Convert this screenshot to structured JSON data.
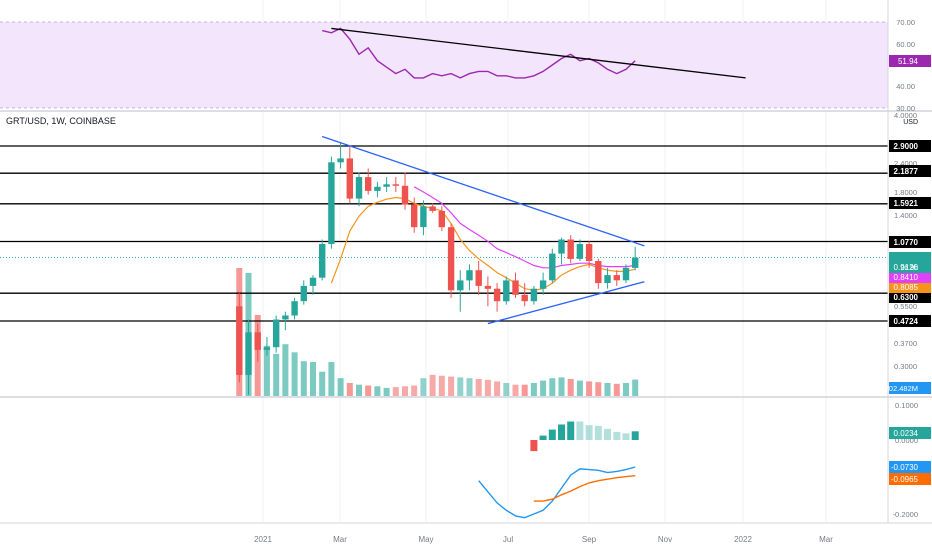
{
  "symbol_label": "GRT/USD, 1W, COINBASE",
  "price_axis": {
    "unit": "USD",
    "ticks": [
      "4.0000",
      "2.4000",
      "1.8000",
      "1.4000",
      "0.5500",
      "0.3700",
      "0.3000"
    ]
  },
  "rsi_axis": {
    "ticks": [
      "70.00",
      "60.00",
      "40.00",
      "30.00"
    ]
  },
  "macd_axis": {
    "ticks": [
      "0.1000",
      "0.0000",
      "-0.2000"
    ]
  },
  "time_axis": {
    "ticks": [
      "2021",
      "Mar",
      "May",
      "Jul",
      "Sep",
      "Nov",
      "2022",
      "Mar"
    ]
  },
  "level_badges": [
    "2.9000",
    "2.1877",
    "1.5921",
    "1.0770",
    "0.6300",
    "0.4724"
  ],
  "value_badges": {
    "price": "0.9120",
    "countdown": "2d 9h",
    "ma_fast": "0.8410",
    "ma_slow": "0.8085",
    "volume": "202.482M",
    "rsi": "51.94",
    "histogram": "0.0234",
    "macd": "-0.0730",
    "signal": "-0.0965"
  },
  "colors": {
    "up": "#26a69a",
    "down": "#ef5350",
    "trendline": "#2962ff",
    "ema_fast": "#e040fb",
    "ema_slow": "#f7931a",
    "rsi_line": "#9c27b0",
    "rsi_band": "#f3e5fb",
    "macd_line": "#2196f3",
    "signal_line": "#ff6d00",
    "level_line": "#000000"
  },
  "chart_data": [
    {
      "type": "candlestick",
      "title": "GRT/USD, 1W, COINBASE",
      "y_scale": "log",
      "ylabel": "USD",
      "x": [
        "2020-12-14",
        "2020-12-21",
        "2020-12-28",
        "2021-01-04",
        "2021-01-11",
        "2021-01-18",
        "2021-01-25",
        "2021-02-01",
        "2021-02-08",
        "2021-02-15",
        "2021-02-22",
        "2021-03-01",
        "2021-03-08",
        "2021-03-15",
        "2021-03-22",
        "2021-03-29",
        "2021-04-05",
        "2021-04-12",
        "2021-04-19",
        "2021-04-26",
        "2021-05-03",
        "2021-05-10",
        "2021-05-17",
        "2021-05-24",
        "2021-05-31",
        "2021-06-07",
        "2021-06-14",
        "2021-06-21",
        "2021-06-28",
        "2021-07-05",
        "2021-07-12",
        "2021-07-19",
        "2021-07-26",
        "2021-08-02",
        "2021-08-09",
        "2021-08-16",
        "2021-08-23",
        "2021-08-30",
        "2021-09-06",
        "2021-09-13",
        "2021-09-20",
        "2021-09-27",
        "2021-10-04",
        "2021-10-11"
      ],
      "ohlc": [
        [
          0.55,
          0.63,
          0.25,
          0.27
        ],
        [
          0.27,
          0.48,
          0.22,
          0.42
        ],
        [
          0.42,
          0.46,
          0.31,
          0.35
        ],
        [
          0.35,
          0.4,
          0.33,
          0.36
        ],
        [
          0.36,
          0.5,
          0.34,
          0.48
        ],
        [
          0.48,
          0.52,
          0.43,
          0.5
        ],
        [
          0.5,
          0.6,
          0.48,
          0.58
        ],
        [
          0.58,
          0.72,
          0.56,
          0.68
        ],
        [
          0.68,
          0.76,
          0.62,
          0.74
        ],
        [
          0.74,
          1.1,
          0.72,
          1.05
        ],
        [
          1.05,
          2.6,
          1.0,
          2.45
        ],
        [
          2.45,
          3.0,
          2.3,
          2.55
        ],
        [
          2.55,
          2.9,
          1.6,
          1.68
        ],
        [
          1.68,
          2.2,
          1.55,
          2.1
        ],
        [
          2.1,
          2.3,
          1.75,
          1.82
        ],
        [
          1.82,
          2.0,
          1.7,
          1.9
        ],
        [
          1.9,
          2.1,
          1.8,
          1.95
        ],
        [
          1.95,
          2.1,
          1.8,
          1.92
        ],
        [
          1.92,
          2.2,
          1.5,
          1.58
        ],
        [
          1.58,
          1.7,
          1.18,
          1.25
        ],
        [
          1.25,
          1.65,
          1.15,
          1.55
        ],
        [
          1.55,
          1.6,
          1.45,
          1.48
        ],
        [
          1.48,
          1.55,
          1.2,
          1.25
        ],
        [
          1.25,
          1.3,
          0.6,
          0.65
        ],
        [
          0.65,
          0.8,
          0.52,
          0.72
        ],
        [
          0.72,
          0.85,
          0.65,
          0.8
        ],
        [
          0.8,
          0.88,
          0.62,
          0.68
        ],
        [
          0.68,
          0.75,
          0.55,
          0.66
        ],
        [
          0.66,
          0.7,
          0.52,
          0.58
        ],
        [
          0.58,
          0.75,
          0.56,
          0.72
        ],
        [
          0.72,
          0.78,
          0.6,
          0.62
        ],
        [
          0.62,
          0.7,
          0.55,
          0.58
        ],
        [
          0.58,
          0.68,
          0.56,
          0.66
        ],
        [
          0.66,
          0.78,
          0.62,
          0.72
        ],
        [
          0.72,
          1.0,
          0.7,
          0.95
        ],
        [
          0.95,
          1.12,
          0.85,
          1.1
        ],
        [
          1.1,
          1.15,
          0.86,
          0.9
        ],
        [
          0.9,
          1.1,
          0.88,
          1.05
        ],
        [
          1.05,
          1.08,
          0.82,
          0.88
        ],
        [
          0.88,
          0.9,
          0.66,
          0.7
        ],
        [
          0.7,
          0.82,
          0.66,
          0.76
        ],
        [
          0.76,
          0.8,
          0.68,
          0.72
        ],
        [
          0.72,
          0.85,
          0.7,
          0.82
        ],
        [
          0.82,
          1.02,
          0.8,
          0.912
        ]
      ],
      "ema_fast": [
        null,
        null,
        null,
        null,
        null,
        null,
        null,
        null,
        null,
        null,
        null,
        null,
        null,
        null,
        null,
        null,
        null,
        null,
        null,
        1.9,
        1.8,
        1.7,
        1.6,
        1.45,
        1.3,
        1.22,
        1.15,
        1.08,
        1.0,
        0.96,
        0.92,
        0.88,
        0.84,
        0.82,
        0.82,
        0.84,
        0.85,
        0.86,
        0.86,
        0.84,
        0.83,
        0.83,
        0.83,
        0.841
      ],
      "ema_slow": [
        null,
        null,
        null,
        null,
        null,
        null,
        null,
        null,
        null,
        null,
        0.7,
        0.9,
        1.2,
        1.4,
        1.55,
        1.62,
        1.67,
        1.7,
        1.68,
        1.6,
        1.55,
        1.52,
        1.48,
        1.3,
        1.1,
        0.98,
        0.9,
        0.84,
        0.78,
        0.74,
        0.7,
        0.66,
        0.65,
        0.66,
        0.7,
        0.76,
        0.8,
        0.83,
        0.85,
        0.82,
        0.8,
        0.79,
        0.79,
        0.8085
      ],
      "volume_M": [
        1580,
        1520,
        1000,
        620,
        520,
        640,
        540,
        430,
        420,
        300,
        420,
        220,
        160,
        140,
        130,
        120,
        100,
        110,
        120,
        130,
        220,
        260,
        250,
        240,
        230,
        220,
        210,
        200,
        180,
        160,
        140,
        140,
        160,
        190,
        220,
        230,
        210,
        190,
        180,
        170,
        160,
        150,
        160,
        202.482
      ],
      "trendlines": [
        {
          "from": [
            "2021-02-15",
            3.2
          ],
          "to": [
            "2021-10-18",
            1.03
          ]
        },
        {
          "from": [
            "2021-06-21",
            0.46
          ],
          "to": [
            "2021-10-18",
            0.71
          ]
        }
      ],
      "horizontal_levels": [
        2.9,
        2.1877,
        1.5921,
        1.077,
        0.63,
        0.4724
      ],
      "last_price": 0.912
    },
    {
      "type": "line",
      "title": "RSI",
      "ylim": [
        30,
        70
      ],
      "band": [
        30,
        70
      ],
      "x": [
        "2021-02-15",
        "2021-02-22",
        "2021-03-01",
        "2021-03-08",
        "2021-03-15",
        "2021-03-22",
        "2021-03-29",
        "2021-04-05",
        "2021-04-12",
        "2021-04-19",
        "2021-04-26",
        "2021-05-03",
        "2021-05-10",
        "2021-05-17",
        "2021-05-24",
        "2021-05-31",
        "2021-06-07",
        "2021-06-14",
        "2021-06-21",
        "2021-06-28",
        "2021-07-05",
        "2021-07-12",
        "2021-07-19",
        "2021-07-26",
        "2021-08-02",
        "2021-08-09",
        "2021-08-16",
        "2021-08-23",
        "2021-08-30",
        "2021-09-06",
        "2021-09-13",
        "2021-09-20",
        "2021-09-27",
        "2021-10-04",
        "2021-10-11"
      ],
      "series": [
        {
          "values": [
            66,
            65,
            67,
            62,
            55,
            58,
            52,
            49,
            46,
            48,
            44,
            44,
            46,
            45,
            46,
            44,
            46,
            47,
            47,
            45,
            45,
            44,
            44,
            45,
            47,
            50,
            53,
            55,
            52,
            53,
            51,
            48,
            46,
            48,
            51.94
          ]
        }
      ],
      "trendlines": [
        {
          "from": [
            "2021-02-22",
            67
          ],
          "to": [
            "2022-01-03",
            44
          ]
        }
      ]
    },
    {
      "type": "bar",
      "title": "MACD",
      "x": [
        "2021-07-26",
        "2021-08-02",
        "2021-08-09",
        "2021-08-16",
        "2021-08-23",
        "2021-08-30",
        "2021-09-06",
        "2021-09-13",
        "2021-09-20",
        "2021-09-27",
        "2021-10-04",
        "2021-10-11"
      ],
      "series": [
        {
          "name": "histogram",
          "values": [
            -0.03,
            0.012,
            0.028,
            0.042,
            0.05,
            0.05,
            0.04,
            0.038,
            0.03,
            0.022,
            0.018,
            0.0234
          ]
        },
        {
          "name": "macd",
          "values": [
            -0.2,
            -0.19,
            -0.165,
            -0.13,
            -0.095,
            -0.078,
            -0.08,
            -0.082,
            -0.088,
            -0.085,
            -0.08,
            -0.073
          ]
        },
        {
          "name": "signal",
          "values": [
            -0.165,
            -0.165,
            -0.16,
            -0.148,
            -0.138,
            -0.126,
            -0.116,
            -0.11,
            -0.106,
            -0.102,
            -0.099,
            -0.0965
          ]
        }
      ],
      "macd_early": {
        "x": [
          "2021-06-14",
          "2021-06-21",
          "2021-06-28",
          "2021-07-05",
          "2021-07-12",
          "2021-07-19"
        ],
        "values": [
          -0.11,
          -0.14,
          -0.17,
          -0.19,
          -0.205,
          -0.21
        ]
      }
    }
  ]
}
